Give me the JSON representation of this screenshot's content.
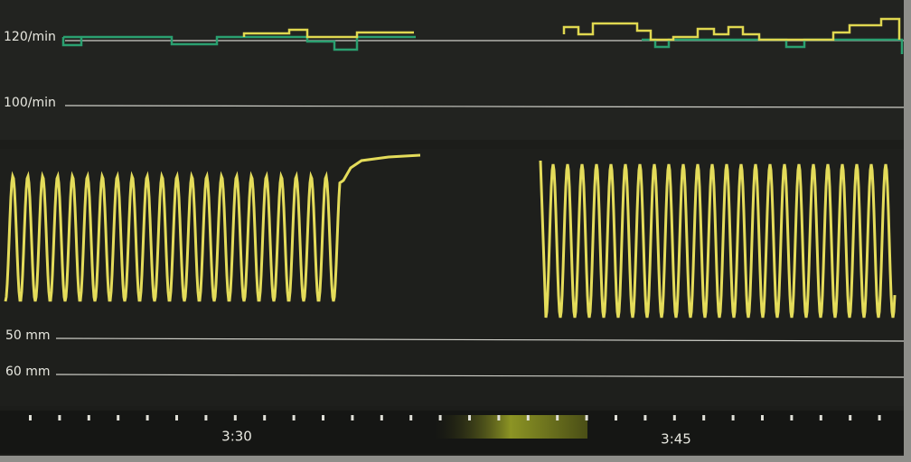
{
  "upper_panel": {
    "labels": [
      "120/min",
      "100/min"
    ]
  },
  "lower_panel": {
    "labels": [
      "50 mm",
      "60 mm"
    ]
  },
  "time_axis": {
    "labels": [
      "3:30",
      "3:45"
    ]
  }
}
